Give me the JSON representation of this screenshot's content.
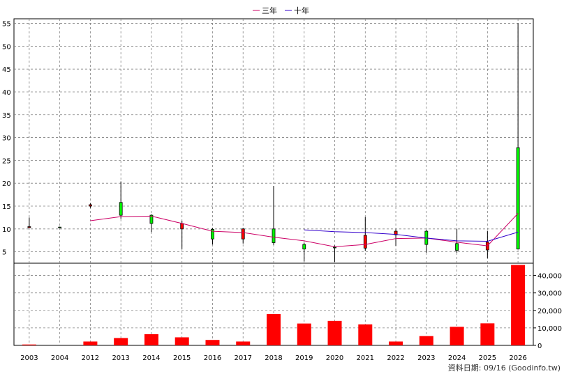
{
  "chart_data": {
    "type": "candlestick+bar",
    "legend": [
      {
        "label": "三年",
        "color": "#cc0066"
      },
      {
        "label": "十年",
        "color": "#3300cc"
      }
    ],
    "categories": [
      "2003",
      "2004",
      "2012",
      "2013",
      "2014",
      "2015",
      "2016",
      "2017",
      "2018",
      "2019",
      "2020",
      "2021",
      "2022",
      "2023",
      "2024",
      "2025",
      "2026"
    ],
    "price_axis": {
      "ticks": [
        5,
        10,
        15,
        20,
        25,
        30,
        35,
        40,
        45,
        50,
        55
      ],
      "range": [
        2.5,
        56
      ]
    },
    "volume_axis": {
      "ticks": [
        0,
        10000,
        20000,
        30000,
        40000
      ],
      "tick_labels": [
        "0",
        "10,000",
        "20,000",
        "30,000",
        "40,000"
      ],
      "range": [
        0,
        47000
      ]
    },
    "candles": [
      {
        "year": "2003",
        "open": 10.5,
        "close": 10.3,
        "high": 12.5,
        "low": 10.2
      },
      {
        "year": "2004",
        "open": 10.4,
        "close": 10.4,
        "high": 10.5,
        "low": 10.3
      },
      {
        "year": "2012",
        "open": 15.3,
        "close": 15.0,
        "high": 15.6,
        "low": 14.6
      },
      {
        "year": "2013",
        "open": 13.0,
        "close": 15.8,
        "high": 20.4,
        "low": 12.2
      },
      {
        "year": "2014",
        "open": 11.2,
        "close": 13.0,
        "high": 13.2,
        "low": 9.3
      },
      {
        "year": "2015",
        "open": 11.2,
        "close": 10.0,
        "high": 11.8,
        "low": 5.6
      },
      {
        "year": "2016",
        "open": 7.8,
        "close": 9.9,
        "high": 10.2,
        "low": 6.6
      },
      {
        "year": "2017",
        "open": 10.0,
        "close": 7.8,
        "high": 10.2,
        "low": 6.8
      },
      {
        "year": "2018",
        "open": 7.0,
        "close": 10.0,
        "high": 19.4,
        "low": 6.5
      },
      {
        "year": "2019",
        "open": 5.6,
        "close": 6.6,
        "high": 7.0,
        "low": 2.9
      },
      {
        "year": "2020",
        "open": 5.9,
        "close": 6.0,
        "high": 6.4,
        "low": 2.8
      },
      {
        "year": "2021",
        "open": 8.6,
        "close": 5.8,
        "high": 12.6,
        "low": 5.2
      },
      {
        "year": "2022",
        "open": 9.5,
        "close": 8.7,
        "high": 9.9,
        "low": 6.3
      },
      {
        "year": "2023",
        "open": 6.6,
        "close": 9.5,
        "high": 9.8,
        "low": 4.8
      },
      {
        "year": "2024",
        "open": 5.3,
        "close": 6.8,
        "high": 10.0,
        "low": 4.8
      },
      {
        "year": "2025",
        "open": 7.1,
        "close": 5.4,
        "high": 9.6,
        "low": 3.6
      },
      {
        "year": "2026",
        "open": 5.6,
        "close": 27.8,
        "high": 55.0,
        "low": 5.6
      }
    ],
    "series": [
      {
        "name": "三年",
        "color": "#cc0066",
        "points": [
          [
            "2012",
            11.8
          ],
          [
            "2013",
            12.7
          ],
          [
            "2014",
            12.8
          ],
          [
            "2015",
            11.2
          ],
          [
            "2016",
            9.5
          ],
          [
            "2017",
            9.2
          ],
          [
            "2018",
            8.2
          ],
          [
            "2019",
            7.4
          ],
          [
            "2020",
            6.1
          ],
          [
            "2021",
            6.6
          ],
          [
            "2022",
            7.9
          ],
          [
            "2023",
            8.0
          ],
          [
            "2024",
            7.1
          ],
          [
            "2025",
            6.3
          ],
          [
            "2026",
            13.4
          ]
        ]
      },
      {
        "name": "十年",
        "color": "#3300cc",
        "points": [
          [
            "2019",
            9.8
          ],
          [
            "2020",
            9.4
          ],
          [
            "2021",
            9.2
          ],
          [
            "2022",
            8.8
          ],
          [
            "2023",
            8.0
          ],
          [
            "2024",
            7.4
          ],
          [
            "2025",
            7.3
          ],
          [
            "2026",
            9.3
          ]
        ]
      }
    ],
    "volume": [
      500,
      0,
      2200,
      4200,
      6400,
      4600,
      3100,
      2200,
      17900,
      12500,
      14000,
      12000,
      2200,
      5300,
      10600,
      12600,
      46000
    ],
    "colors": {
      "up": "#00ff00",
      "down": "#ff0000",
      "volume": "#ff0000",
      "grid": "#808080"
    }
  },
  "footer": "資料日期: 09/16  (Goodinfo.tw)"
}
